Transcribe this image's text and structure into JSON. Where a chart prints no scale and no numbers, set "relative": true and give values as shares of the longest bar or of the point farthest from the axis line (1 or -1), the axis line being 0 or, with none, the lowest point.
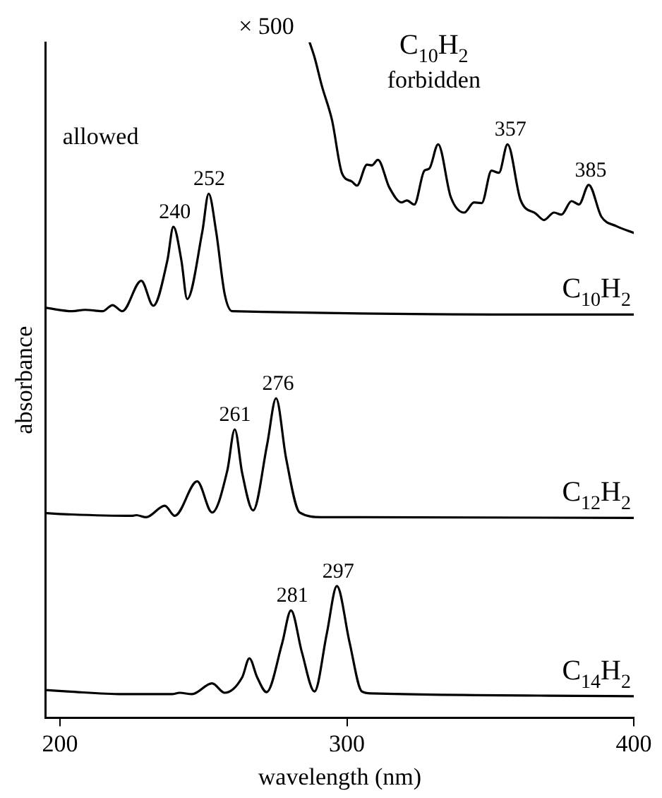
{
  "chart_data": {
    "type": "line",
    "relative": true,
    "xlabel": "wavelength (nm)",
    "ylabel": "absorbance",
    "xlim": [
      195,
      400
    ],
    "xticks": [
      200,
      300,
      400
    ],
    "legend": false,
    "grid": false,
    "marker": "none",
    "line_style": "solid",
    "series": [
      {
        "name": "C$_{10}$H$_{2}$",
        "color": "#000000",
        "x": [
          195,
          204.3,
          208.7,
          214.8,
          218.3,
          221.7,
          228.3,
          232.5,
          237.4,
          239.5,
          242.3,
          244.3,
          249.6,
          251.8,
          254.4,
          257.4,
          260,
          400
        ],
        "values": [
          0.607,
          0.602,
          0.604,
          0.602,
          0.611,
          0.602,
          0.647,
          0.61,
          0.677,
          0.727,
          0.677,
          0.62,
          0.72,
          0.776,
          0.72,
          0.627,
          0.602,
          0.597
        ]
      },
      {
        "name": "C$_{12}$H$_{2}$",
        "color": "#000000",
        "x": [
          195,
          204,
          225,
          226.6,
          230,
          236.5,
          240,
          247.8,
          253,
          258.3,
          260.9,
          263.5,
          267.3,
          272.2,
          275.3,
          278.8,
          283.5,
          291.3,
          400
        ],
        "values": [
          0.303,
          0.301,
          0.299,
          0.3,
          0.297,
          0.314,
          0.299,
          0.35,
          0.304,
          0.366,
          0.427,
          0.362,
          0.307,
          0.405,
          0.473,
          0.384,
          0.304,
          0.297,
          0.296
        ]
      },
      {
        "name": "C$_{14}$H$_{2}$",
        "color": "#000000",
        "x": [
          195,
          202.6,
          221.7,
          239,
          241.7,
          246,
          253,
          257.4,
          263.5,
          266,
          268.7,
          272,
          277.4,
          280.5,
          284.3,
          288.7,
          293,
          296.5,
          300.9,
          305.2,
          308.7,
          400
        ],
        "values": [
          0.041,
          0.039,
          0.035,
          0.035,
          0.037,
          0.035,
          0.051,
          0.037,
          0.06,
          0.088,
          0.06,
          0.038,
          0.11,
          0.159,
          0.097,
          0.039,
          0.125,
          0.195,
          0.112,
          0.039,
          0.036,
          0.032
        ]
      },
      {
        "name": "C$_{10}$H$_{2}$",
        "color": "#000000",
        "x": [
          287,
          288.7,
          291.3,
          294.8,
          298.3,
          301.7,
          303.5,
          307,
          308.7,
          310.8,
          314.8,
          319.1,
          320.9,
          323.5,
          327,
          328.7,
          331.8,
          336.2,
          340.9,
          344.3,
          347,
          350.4,
          353,
          356,
          360.5,
          366,
          368.7,
          372.2,
          374.8,
          378.3,
          380.9,
          384.3,
          388.7,
          393.9,
          400
        ],
        "values": [
          1,
          0.978,
          0.935,
          0.885,
          0.806,
          0.794,
          0.788,
          0.819,
          0.818,
          0.826,
          0.785,
          0.763,
          0.766,
          0.76,
          0.81,
          0.813,
          0.849,
          0.771,
          0.748,
          0.763,
          0.762,
          0.81,
          0.807,
          0.849,
          0.767,
          0.746,
          0.737,
          0.748,
          0.745,
          0.765,
          0.76,
          0.789,
          0.742,
          0.728,
          0.718
        ]
      }
    ],
    "annotations": [
      "allowed",
      "× 500",
      "forbidden",
      {
        "text": "240",
        "x": 240,
        "y": 0.727
      },
      {
        "text": "252",
        "x": 252,
        "y": 0.776
      },
      {
        "text": "261",
        "x": 261,
        "y": 0.427
      },
      {
        "text": "276",
        "x": 276,
        "y": 0.473
      },
      {
        "text": "281",
        "x": 281,
        "y": 0.159
      },
      {
        "text": "297",
        "x": 297,
        "y": 0.195
      },
      {
        "text": "357",
        "x": 357,
        "y": 0.849
      },
      {
        "text": "385",
        "x": 385,
        "y": 0.789
      }
    ]
  }
}
